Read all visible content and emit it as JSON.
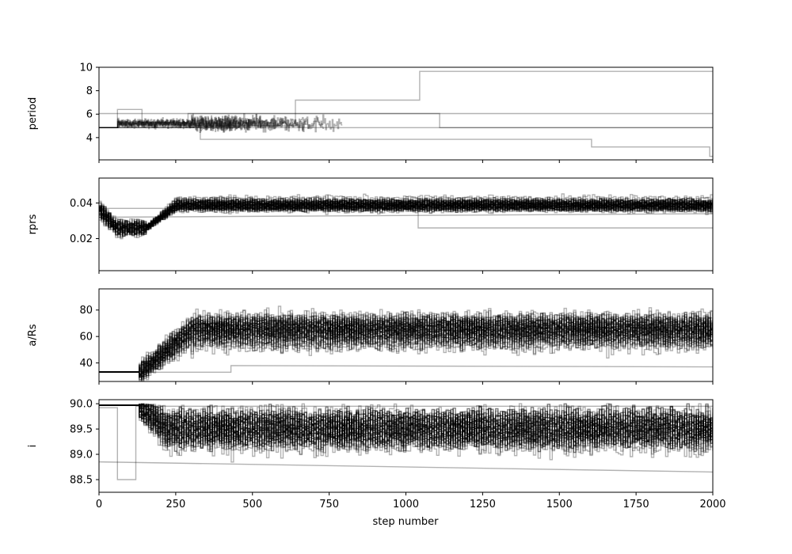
{
  "chart_data": {
    "type": "line",
    "description_style": "stacked MCMC walker trace plots sharing x axis",
    "xlabel": "step number",
    "xlim": [
      0,
      2000
    ],
    "xticks": [
      0,
      250,
      500,
      750,
      1000,
      1250,
      1500,
      1750,
      2000
    ],
    "line_color": "#000000",
    "line_alpha": 0.3,
    "panels": [
      {
        "ylabel": "period",
        "ylim": [
          2.1,
          10.0
        ],
        "yticks": [
          4,
          6,
          8,
          10
        ],
        "walker_count": 60,
        "series": [
          {
            "x": [
              0,
              2000
            ],
            "y": [
              4.85,
              4.85
            ]
          },
          {
            "x": [
              0,
              60,
              60,
              140,
              140,
              290,
              290,
              1110,
              1110,
              2000
            ],
            "y": [
              4.85,
              4.85,
              6.4,
              6.4,
              5.3,
              5.3,
              6.05,
              6.05,
              4.85,
              4.85
            ]
          },
          {
            "x": [
              0,
              310,
              310,
              640,
              640,
              1045,
              1045,
              2000
            ],
            "y": [
              4.85,
              4.85,
              5.0,
              5.0,
              7.2,
              7.2,
              9.65,
              9.65
            ]
          },
          {
            "x": [
              0,
              330,
              330,
              1605,
              1605,
              1990,
              1990,
              2000
            ],
            "y": [
              4.85,
              4.85,
              3.85,
              3.85,
              3.2,
              3.2,
              2.4,
              2.4
            ]
          },
          {
            "x": [
              0,
              2000
            ],
            "y": [
              6.05,
              6.05
            ]
          }
        ],
        "band": {
          "x_end": 790,
          "center": 5.2,
          "spread": 1.0
        }
      },
      {
        "ylabel": "rprs",
        "ylim": [
          0.002,
          0.054
        ],
        "yticks": [
          0.02,
          0.04
        ],
        "walker_count": 60,
        "series": [
          {
            "x": [
              0,
              1040,
              1040,
              2000
            ],
            "y": [
              0.037,
              0.037,
              0.026,
              0.026
            ]
          },
          {
            "x": [
              0,
              2000
            ],
            "y": [
              0.032,
              0.034
            ]
          }
        ],
        "trend": {
          "start": 0.036,
          "dip": 0.025,
          "dip_at": 60,
          "plateau": 0.026,
          "rise_start": 150,
          "rise_end": 250,
          "end": 0.039
        }
      },
      {
        "ylabel": "a/Rs",
        "ylim": [
          26,
          96
        ],
        "yticks": [
          40,
          60,
          80
        ],
        "walker_count": 60,
        "series": [
          {
            "x": [
              0,
              430,
              430,
              2000
            ],
            "y": [
              33,
              33,
              38,
              37
            ]
          }
        ],
        "trend": {
          "start": 33,
          "rise_start": 130,
          "rise_end": 300,
          "end": 65
        }
      },
      {
        "ylabel": "i",
        "ylim": [
          88.25,
          90.08
        ],
        "yticks": [
          88.5,
          89.0,
          89.5,
          90.0
        ],
        "walker_count": 60,
        "series": [
          {
            "x": [
              0,
              60,
              60,
              120,
              120,
              2000
            ],
            "y": [
              89.92,
              89.92,
              88.5,
              88.5,
              89.95,
              89.95
            ]
          },
          {
            "x": [
              0,
              2000
            ],
            "y": [
              88.85,
              88.65
            ]
          }
        ],
        "trend": {
          "start": 89.92,
          "drop_start": 130,
          "drop_end": 220,
          "end": 89.5
        }
      }
    ]
  }
}
